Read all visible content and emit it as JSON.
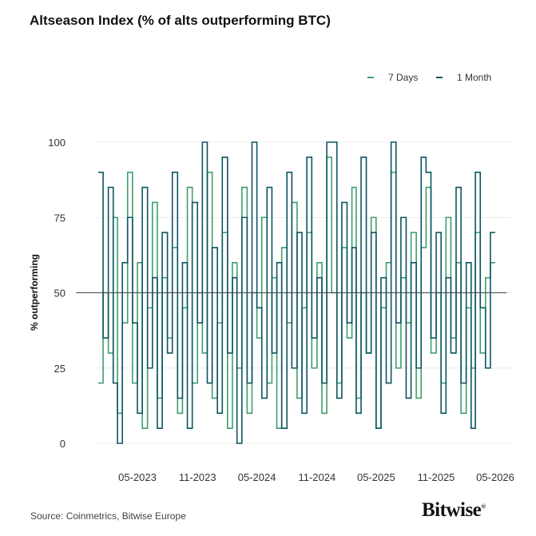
{
  "chart_data": {
    "type": "line",
    "title": "Altseason Index (% of alts outperforming BTC)",
    "xlabel": "",
    "ylabel": "% outperforming",
    "ylim": [
      0,
      100
    ],
    "yticks": [
      "0",
      "25",
      "50",
      "75",
      "100"
    ],
    "xticks": [
      "05-2023",
      "11-2023",
      "05-2024",
      "11-2024",
      "05-2025",
      "11-2025",
      "05-2026"
    ],
    "reference_line": 50,
    "grid": true,
    "legend": "top-right",
    "x": [
      "2023-01-01",
      "2023-01-16",
      "2023-02-01",
      "2023-02-16",
      "2023-03-01",
      "2023-03-16",
      "2023-04-01",
      "2023-04-16",
      "2023-05-01",
      "2023-05-16",
      "2023-06-01",
      "2023-06-16",
      "2023-07-01",
      "2023-07-16",
      "2023-08-01",
      "2023-08-16",
      "2023-09-01",
      "2023-09-16",
      "2023-10-01",
      "2023-10-16",
      "2023-11-01",
      "2023-11-16",
      "2023-12-01",
      "2023-12-16",
      "2024-01-01",
      "2024-01-16",
      "2024-02-01",
      "2024-02-16",
      "2024-03-01",
      "2024-03-16",
      "2024-04-01",
      "2024-04-16",
      "2024-05-01",
      "2024-05-16",
      "2024-06-01",
      "2024-06-16",
      "2024-07-01",
      "2024-07-16",
      "2024-08-01",
      "2024-08-16",
      "2024-09-01",
      "2024-09-16",
      "2024-10-01",
      "2024-10-16",
      "2024-11-01",
      "2024-11-16",
      "2024-12-01",
      "2024-12-16",
      "2025-01-01",
      "2025-01-16",
      "2025-02-01",
      "2025-02-16",
      "2025-03-01",
      "2025-03-16",
      "2025-04-01",
      "2025-04-16",
      "2025-05-01",
      "2025-05-16",
      "2025-06-01",
      "2025-06-16",
      "2025-07-01",
      "2025-07-16",
      "2025-08-01",
      "2025-08-16",
      "2025-09-01",
      "2025-09-16",
      "2025-10-01",
      "2025-10-16",
      "2025-11-01",
      "2025-11-16",
      "2025-12-01",
      "2025-12-16",
      "2026-01-01",
      "2026-01-16",
      "2026-02-01",
      "2026-02-16",
      "2026-03-01",
      "2026-03-16",
      "2026-04-01",
      "2026-04-16"
    ],
    "series": [
      {
        "name": "7 Days",
        "color": "#3f9e6e",
        "values": [
          20,
          50,
          30,
          75,
          10,
          40,
          90,
          20,
          60,
          5,
          45,
          80,
          15,
          55,
          35,
          65,
          10,
          45,
          85,
          20,
          50,
          30,
          90,
          15,
          40,
          70,
          5,
          60,
          25,
          85,
          10,
          50,
          35,
          75,
          20,
          55,
          5,
          65,
          40,
          80,
          15,
          45,
          70,
          25,
          60,
          10,
          95,
          50,
          20,
          65,
          35,
          85,
          15,
          50,
          30,
          75,
          5,
          45,
          60,
          90,
          25,
          55,
          40,
          70,
          15,
          65,
          85,
          30,
          50,
          20,
          75,
          35,
          60,
          10,
          45,
          25,
          70,
          30,
          55,
          60
        ]
      },
      {
        "name": "1 Month",
        "color": "#0d5561",
        "values": [
          90,
          35,
          85,
          20,
          0,
          60,
          75,
          40,
          10,
          85,
          25,
          55,
          5,
          70,
          30,
          90,
          15,
          60,
          5,
          80,
          40,
          100,
          20,
          65,
          10,
          95,
          30,
          55,
          0,
          75,
          20,
          100,
          45,
          15,
          85,
          30,
          60,
          5,
          90,
          25,
          70,
          10,
          95,
          35,
          55,
          20,
          100,
          100,
          15,
          80,
          40,
          65,
          10,
          95,
          30,
          70,
          5,
          55,
          20,
          100,
          40,
          75,
          15,
          60,
          25,
          95,
          90,
          35,
          70,
          10,
          55,
          30,
          85,
          20,
          60,
          5,
          90,
          45,
          25,
          70
        ]
      }
    ]
  },
  "footer": {
    "source": "Source: Coinmetrics, Bitwise Europe",
    "logo": "Bitwise"
  }
}
